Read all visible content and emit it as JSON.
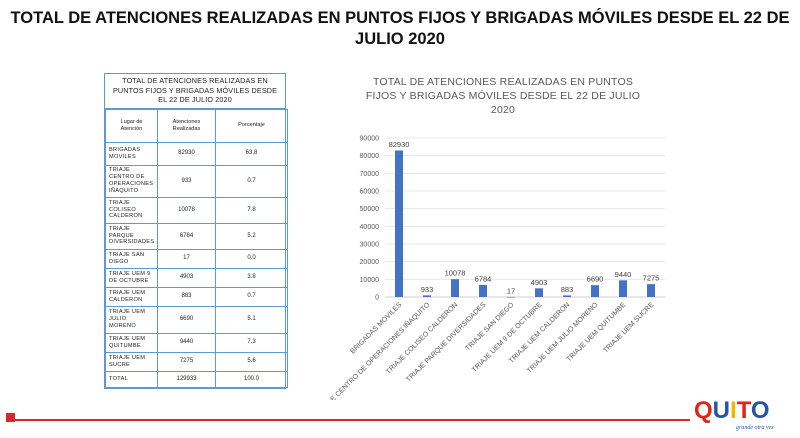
{
  "page": {
    "title": "TOTAL DE ATENCIONES REALIZADAS EN PUNTOS FIJOS Y BRIGADAS MÓVILES DESDE EL 22 DE JULIO 2020"
  },
  "table": {
    "caption": "TOTAL DE ATENCIONES  REALIZADAS EN PUNTOS FIJOS Y BRIGADAS MÓVILES DESDE EL 22 DE JULIO 2020",
    "headers": [
      "Lugar de Atención",
      "Atenciones Realizadas",
      "Porcentaje"
    ],
    "rows": [
      {
        "place": "BRIGADAS MOVILES",
        "count": "82930",
        "pct": "63.8"
      },
      {
        "place": "TRIAJE CENTRO DE OPERACIONES IÑAQUITO",
        "count": "933",
        "pct": "0.7"
      },
      {
        "place": "TRIAJE COLISEO CALDERON",
        "count": "10078",
        "pct": "7.8"
      },
      {
        "place": "TRIAJE PARQUE DIVERSIDADES",
        "count": "6784",
        "pct": "5.2"
      },
      {
        "place": "TRIAJE SAN DIEGO",
        "count": "17",
        "pct": "0.0"
      },
      {
        "place": "TRIAJE UEM 9 DE OCTUBRE",
        "count": "4903",
        "pct": "3.8"
      },
      {
        "place": "TRIAJE UEM CALDERON",
        "count": "883",
        "pct": "0.7"
      },
      {
        "place": "TRIAJE UEM JULIO MORENO",
        "count": "6690",
        "pct": "5.1"
      },
      {
        "place": "TRIAJE UEM QUITUMBE",
        "count": "9440",
        "pct": "7.3"
      },
      {
        "place": "TRIAJE UEM SUCRE",
        "count": "7275",
        "pct": "5.6"
      }
    ],
    "total": {
      "label": "TOTAL",
      "count": "129933",
      "pct": "100.0"
    }
  },
  "chart_data": {
    "type": "bar",
    "title": "TOTAL DE ATENCIONES REALIZADAS EN PUNTOS FIJOS Y BRIGADAS MÓVILES DESDE EL 22 DE JULIO 2020",
    "categories": [
      "BRIGADAS MOVILES",
      "TRIAJE CENTRO DE OPERACIONES IÑAQUITO",
      "TRIAJE COLISEO CALDERON",
      "TRIAJE PARQUE DIVERSIDADES",
      "TRIAJE SAN DIEGO",
      "TRIAJE UEM 9 DE OCTUBRE",
      "TRIAJE UEM CALDERON",
      "TRIAJE UEM JULIO MORENO",
      "TRIAJE UEM QUITUMBE",
      "TRIAJE UEM SUCRE"
    ],
    "values": [
      82930,
      933,
      10078,
      6784,
      17,
      4903,
      883,
      6690,
      9440,
      7275
    ],
    "ylim": [
      0,
      90000
    ],
    "yticks": [
      0,
      10000,
      20000,
      30000,
      40000,
      50000,
      60000,
      70000,
      80000,
      90000
    ],
    "xlabel": "",
    "ylabel": "",
    "grid": true,
    "bar_color": "#4472c4",
    "data_labels": true
  },
  "logo": {
    "word": "QUITO",
    "tagline": "grande otra vez",
    "colors": {
      "red": "#e2231a",
      "blue": "#2456a6",
      "yellow": "#f5b400"
    }
  },
  "colors": {
    "accent_red": "#d9262b",
    "table_border": "#5b9bd5"
  }
}
